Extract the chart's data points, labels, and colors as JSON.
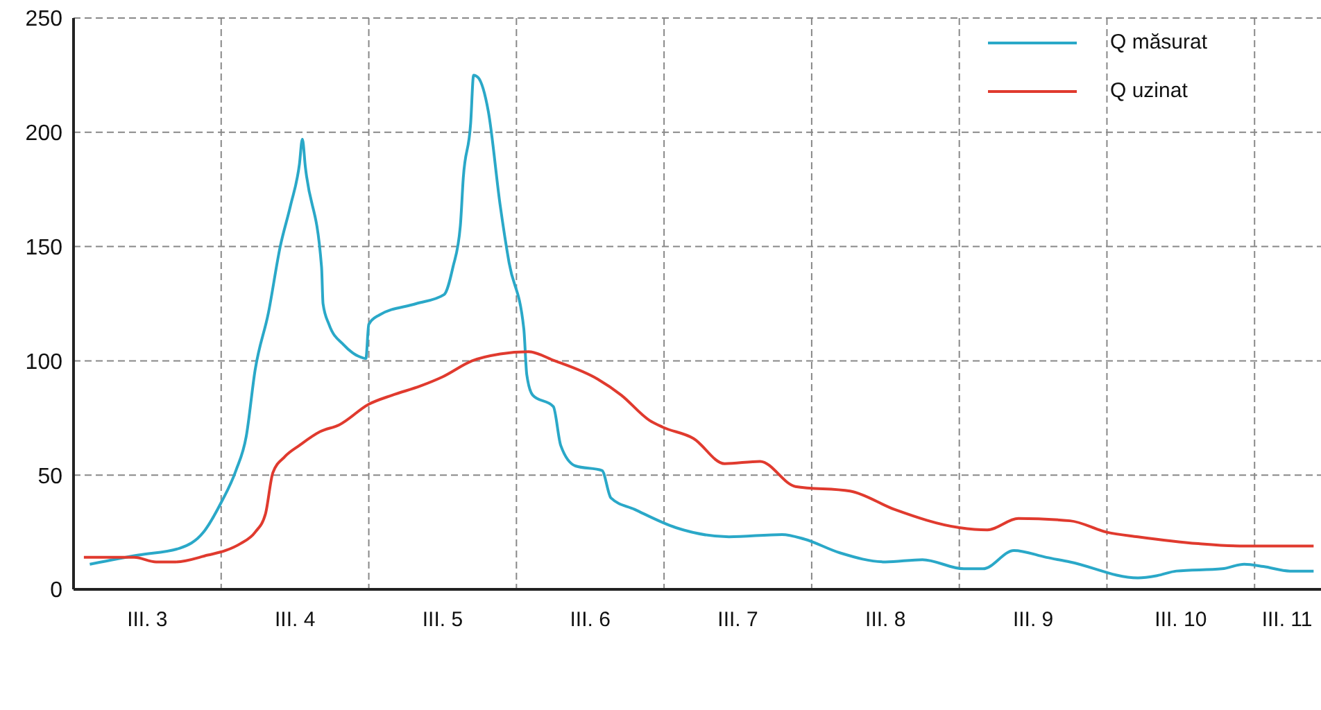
{
  "chart_data": {
    "type": "line",
    "xlim": [
      3,
      11.45
    ],
    "xticks": [
      {
        "value": 3.5,
        "label": "III. 3"
      },
      {
        "value": 4,
        "label": null
      },
      {
        "value": 4.5,
        "label": "III. 4"
      },
      {
        "value": 5,
        "label": null
      },
      {
        "value": 5.5,
        "label": "III. 5"
      },
      {
        "value": 6,
        "label": null
      },
      {
        "value": 6.5,
        "label": "III. 6"
      },
      {
        "value": 7,
        "label": null
      },
      {
        "value": 7.5,
        "label": "III. 7"
      },
      {
        "value": 8,
        "label": null
      },
      {
        "value": 8.5,
        "label": "III. 8"
      },
      {
        "value": 9,
        "label": null
      },
      {
        "value": 9.5,
        "label": "III. 9"
      },
      {
        "value": 10,
        "label": null
      },
      {
        "value": 10.5,
        "label": "III. 10"
      },
      {
        "value": 11,
        "label": null
      },
      {
        "value": 11.22,
        "label": "III. 11"
      }
    ],
    "ylim": [
      0,
      250
    ],
    "yticks": [
      0,
      50,
      100,
      150,
      200,
      250
    ],
    "grid": true,
    "legend": "top right",
    "marker": "none",
    "line_style": "solid",
    "series": [
      {
        "name": "Q măsurat",
        "color": "#2aa8c8",
        "x": [
          3.11,
          3.44,
          3.72,
          3.88,
          4.0,
          4.1,
          4.17,
          4.23,
          4.32,
          4.4,
          4.47,
          4.53,
          4.55,
          4.57,
          4.68,
          4.69,
          4.73,
          4.83,
          4.93,
          4.98,
          5.0,
          5.07,
          5.32,
          5.51,
          5.57,
          5.62,
          5.64,
          5.69,
          5.71,
          5.74,
          5.81,
          5.89,
          5.95,
          6.05,
          6.07,
          6.11,
          6.25,
          6.3,
          6.4,
          6.58,
          6.64,
          6.8,
          7.08,
          7.44,
          7.8,
          7.95,
          8.19,
          8.5,
          8.75,
          9.03,
          9.16,
          9.37,
          9.59,
          9.75,
          10.21,
          10.34,
          10.47,
          10.78,
          10.93,
          11.06,
          11.24,
          11.4
        ],
        "values": [
          11,
          15,
          18,
          25,
          38,
          52,
          67,
          96,
          121,
          150,
          168,
          186,
          197,
          185,
          141,
          125,
          116,
          107,
          102,
          101,
          116,
          120,
          125,
          129,
          141,
          159,
          180,
          204,
          225,
          224,
          209,
          168,
          143,
          114,
          94,
          85,
          80,
          63,
          54,
          52,
          40,
          35,
          27,
          23,
          24,
          22,
          16,
          12,
          13,
          9,
          9,
          17,
          14,
          12,
          5,
          6,
          8,
          9,
          11,
          10,
          8,
          8
        ]
      },
      {
        "name": "Q uzinat",
        "color": "#e03a2e",
        "x": [
          3.07,
          3.41,
          3.56,
          3.69,
          3.91,
          4.03,
          4.13,
          4.23,
          4.3,
          4.35,
          4.43,
          4.53,
          4.67,
          4.8,
          5.0,
          5.16,
          5.35,
          5.5,
          5.7,
          5.89,
          6.08,
          6.26,
          6.55,
          6.71,
          6.9,
          6.99,
          7.2,
          7.41,
          7.65,
          7.89,
          8.26,
          8.56,
          9.0,
          9.19,
          9.4,
          9.75,
          10.0,
          10.21,
          10.62,
          10.9,
          11.4
        ],
        "values": [
          14,
          14,
          12,
          12,
          15,
          17,
          20,
          25,
          33,
          51,
          58,
          63,
          69,
          72,
          81,
          85,
          89,
          93,
          100,
          103,
          104,
          100,
          92,
          85,
          74,
          71,
          66,
          55,
          56,
          45,
          43,
          35,
          27,
          26,
          31,
          30,
          25,
          23,
          20,
          19,
          19
        ]
      }
    ]
  }
}
